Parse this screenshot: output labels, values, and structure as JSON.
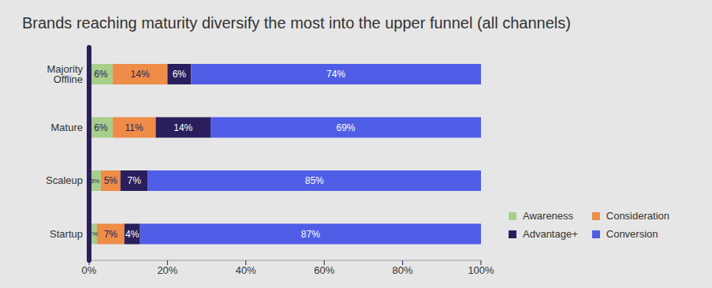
{
  "chart_data": {
    "type": "bar",
    "title": "Brands reaching maturity diversify the most into the upper funnel (all channels)",
    "orientation": "horizontal",
    "stacked": true,
    "data_labels": true,
    "grid": false,
    "legend": "right",
    "categories": [
      "Majority Offline",
      "Mature",
      "Scaleup",
      "Startup"
    ],
    "xlim": [
      0,
      100
    ],
    "xticks": [
      {
        "value": 0,
        "label": "0%"
      },
      {
        "value": 20,
        "label": "20%"
      },
      {
        "value": 40,
        "label": "40%"
      },
      {
        "value": 60,
        "label": "60%"
      },
      {
        "value": 80,
        "label": "80%"
      },
      {
        "value": 100,
        "label": "100%"
      }
    ],
    "series": [
      {
        "name": "Awareness",
        "color": "#a6cf8b",
        "values": [
          6,
          6,
          3,
          2
        ],
        "value_labels": [
          "6%",
          "6%",
          "3%",
          "2%"
        ]
      },
      {
        "name": "Consideration",
        "color": "#ee8c48",
        "values": [
          14,
          11,
          5,
          7
        ],
        "value_labels": [
          "14%",
          "11%",
          "5%",
          "7%"
        ]
      },
      {
        "name": "Advantage+",
        "color": "#2a1f5c",
        "values": [
          6,
          14,
          7,
          4
        ],
        "value_labels": [
          "6%",
          "14%",
          "7%",
          "4%"
        ]
      },
      {
        "name": "Conversion",
        "color": "#4f5de6",
        "values": [
          74,
          69,
          85,
          87
        ],
        "value_labels": [
          "74%",
          "69%",
          "85%",
          "87%"
        ]
      }
    ]
  }
}
